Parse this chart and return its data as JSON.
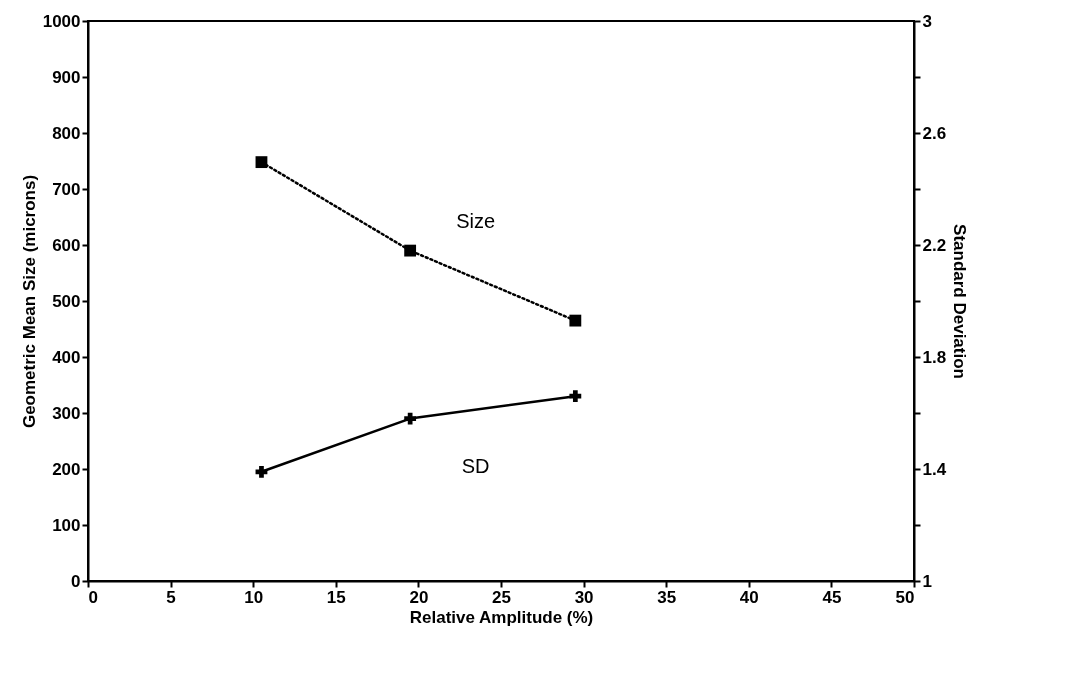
{
  "chart_data": {
    "type": "line",
    "xlabel": "Relative Amplitude (%)",
    "ylabel": "Geometric Mean Size (microns)",
    "y2label": "Standard Deviation",
    "x": [
      10.5,
      19.5,
      29.5
    ],
    "series": [
      {
        "name": "Size",
        "color": "#000000",
        "values": [
          748,
          590,
          465
        ],
        "marker": "square",
        "line_style": "dotted"
      },
      {
        "name": "SD",
        "color": "#000000",
        "values": [
          1.39,
          1.58,
          1.66
        ],
        "marker": "cross",
        "line_style": "solid",
        "axis": "y2"
      }
    ],
    "xlim": [
      0,
      50
    ],
    "xticks": [
      0,
      5,
      10,
      15,
      20,
      25,
      30,
      35,
      40,
      45,
      50
    ],
    "ylim": [
      0,
      1000
    ],
    "yticks": [
      0,
      100,
      200,
      300,
      400,
      500,
      600,
      700,
      800,
      900,
      1000
    ],
    "y2lim": [
      1,
      3
    ],
    "y2ticks": [
      1,
      {
        "value": 1.2,
        "label": null
      },
      1.4,
      {
        "value": 1.6,
        "label": null
      },
      1.8,
      {
        "value": 2.0,
        "label": null
      },
      2.2,
      {
        "value": 2.4,
        "label": null
      },
      2.6,
      {
        "value": 2.8,
        "label": null
      },
      3
    ]
  }
}
